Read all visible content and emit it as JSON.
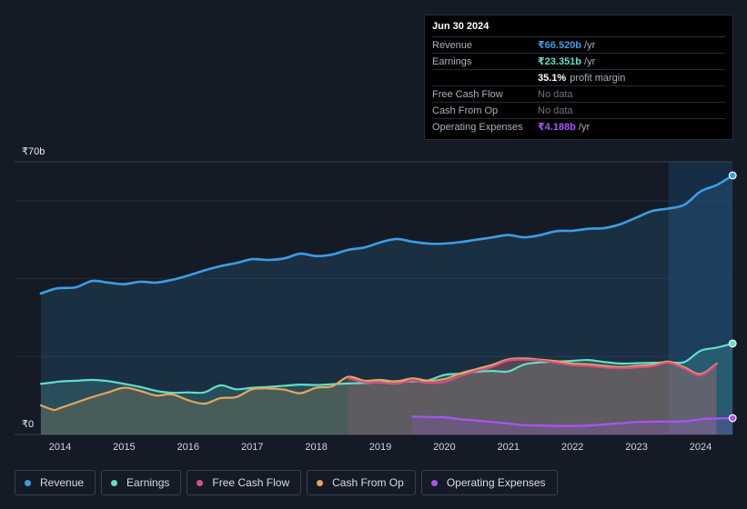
{
  "tooltip": {
    "date": "Jun 30 2024",
    "revenue": {
      "label": "Revenue",
      "value": "₹66.520b",
      "unit": "/yr",
      "color": "#3d9ee3"
    },
    "earnings": {
      "label": "Earnings",
      "value": "₹23.351b",
      "unit": "/yr",
      "color": "#5ee0c8"
    },
    "margin": {
      "value": "35.1%",
      "label": "profit margin"
    },
    "fcf": {
      "label": "Free Cash Flow",
      "value": "No data"
    },
    "cfo": {
      "label": "Cash From Op",
      "value": "No data"
    },
    "opex": {
      "label": "Operating Expenses",
      "value": "₹4.188b",
      "unit": "/yr",
      "color": "#a855f7"
    }
  },
  "legend": [
    {
      "label": "Revenue",
      "color": "#3d9ee3"
    },
    {
      "label": "Earnings",
      "color": "#5ee0c8"
    },
    {
      "label": "Free Cash Flow",
      "color": "#d64f86"
    },
    {
      "label": "Cash From Op",
      "color": "#e6a55c"
    },
    {
      "label": "Operating Expenses",
      "color": "#a855f7"
    }
  ],
  "chart_data": {
    "type": "line",
    "title": "",
    "ylabel": "",
    "y_top_label": "₹70b",
    "y_bottom_label": "₹0",
    "ylim": [
      0,
      70
    ],
    "xlim": [
      2013.7,
      2024.5
    ],
    "x_ticks": [
      2014,
      2015,
      2016,
      2017,
      2018,
      2019,
      2020,
      2021,
      2022,
      2023,
      2024
    ],
    "x_tick_labels": [
      "2014",
      "2015",
      "2016",
      "2017",
      "2018",
      "2019",
      "2020",
      "2021",
      "2022",
      "2023",
      "2024"
    ],
    "highlight_from": 2023.5,
    "series": [
      {
        "name": "Revenue",
        "color": "#3d9ee3",
        "fill": true,
        "x": [
          2013.7,
          2013.9,
          2014.0,
          2014.25,
          2014.5,
          2014.75,
          2015.0,
          2015.25,
          2015.5,
          2015.75,
          2016.0,
          2016.25,
          2016.5,
          2016.75,
          2017.0,
          2017.25,
          2017.5,
          2017.75,
          2018.0,
          2018.25,
          2018.5,
          2018.75,
          2019.0,
          2019.25,
          2019.5,
          2019.75,
          2020.0,
          2020.25,
          2020.5,
          2020.75,
          2021.0,
          2021.25,
          2021.5,
          2021.75,
          2022.0,
          2022.25,
          2022.5,
          2022.75,
          2023.0,
          2023.25,
          2023.5,
          2023.75,
          2024.0,
          2024.25,
          2024.5
        ],
        "values": [
          36.2,
          37.3,
          37.6,
          37.8,
          39.4,
          39.0,
          38.6,
          39.2,
          39.0,
          39.7,
          40.8,
          42.1,
          43.2,
          44.0,
          45.0,
          44.8,
          45.2,
          46.4,
          45.8,
          46.2,
          47.4,
          48.0,
          49.3,
          50.2,
          49.5,
          49.0,
          49.0,
          49.4,
          50.0,
          50.6,
          51.2,
          50.6,
          51.2,
          52.2,
          52.3,
          52.8,
          53.0,
          54.0,
          55.7,
          57.4,
          58.0,
          59.0,
          62.4,
          64.0,
          66.5
        ]
      },
      {
        "name": "Earnings",
        "color": "#5ee0c8",
        "fill": true,
        "x": [
          2013.7,
          2013.9,
          2014.0,
          2014.25,
          2014.5,
          2014.75,
          2015.0,
          2015.25,
          2015.5,
          2015.75,
          2016.0,
          2016.25,
          2016.5,
          2016.75,
          2017.0,
          2017.25,
          2017.5,
          2017.75,
          2018.0,
          2018.25,
          2018.5,
          2018.75,
          2019.0,
          2019.25,
          2019.5,
          2019.75,
          2020.0,
          2020.25,
          2020.5,
          2020.75,
          2021.0,
          2021.25,
          2021.5,
          2021.75,
          2022.0,
          2022.25,
          2022.5,
          2022.75,
          2023.0,
          2023.25,
          2023.5,
          2023.75,
          2024.0,
          2024.25,
          2024.5
        ],
        "values": [
          13.0,
          13.4,
          13.6,
          13.8,
          14.0,
          13.7,
          13.0,
          12.2,
          11.2,
          10.7,
          10.8,
          10.8,
          12.6,
          11.6,
          12.0,
          12.2,
          12.5,
          12.8,
          12.7,
          12.9,
          13.1,
          13.2,
          13.4,
          13.7,
          13.6,
          13.9,
          15.3,
          15.6,
          16.1,
          16.3,
          16.2,
          18.0,
          18.5,
          18.7,
          18.9,
          19.1,
          18.6,
          18.2,
          18.3,
          18.4,
          18.5,
          18.6,
          21.5,
          22.3,
          23.35
        ]
      },
      {
        "name": "Cash From Op",
        "color": "#e6a55c",
        "fill": true,
        "x": [
          2013.7,
          2013.9,
          2014.0,
          2014.25,
          2014.5,
          2014.75,
          2015.0,
          2015.25,
          2015.5,
          2015.75,
          2016.0,
          2016.25,
          2016.5,
          2016.75,
          2017.0,
          2017.25,
          2017.5,
          2017.75,
          2018.0,
          2018.25,
          2018.5,
          2018.75,
          2019.0,
          2019.25,
          2019.5,
          2019.75,
          2020.0,
          2020.25,
          2020.5,
          2020.75,
          2021.0,
          2021.25,
          2021.5,
          2021.75,
          2022.0,
          2022.25,
          2022.5,
          2022.75,
          2023.0,
          2023.25,
          2023.5,
          2023.75,
          2024.0,
          2024.25
        ],
        "values": [
          7.5,
          6.3,
          6.8,
          8.2,
          9.6,
          10.8,
          12.0,
          11.2,
          10.0,
          10.3,
          8.8,
          7.9,
          9.3,
          9.6,
          11.6,
          11.8,
          11.5,
          10.6,
          12.0,
          12.4,
          14.8,
          13.8,
          14.0,
          13.6,
          14.4,
          13.8,
          14.2,
          15.7,
          16.8,
          17.9,
          19.3,
          19.5,
          19.2,
          18.8,
          18.2,
          18.0,
          17.6,
          17.3,
          17.6,
          17.9,
          18.7,
          17.2,
          15.5,
          18.2
        ]
      },
      {
        "name": "Free Cash Flow",
        "color": "#d64f86",
        "fill": true,
        "x": [
          2018.5,
          2018.75,
          2019.0,
          2019.25,
          2019.5,
          2019.75,
          2020.0,
          2020.25,
          2020.5,
          2020.75,
          2021.0,
          2021.25,
          2021.5,
          2021.75,
          2022.0,
          2022.25,
          2022.5,
          2022.75,
          2023.0,
          2023.25,
          2023.5,
          2023.75,
          2024.0,
          2024.25
        ],
        "values": [
          14.5,
          13.4,
          13.3,
          13.0,
          13.8,
          13.2,
          13.5,
          15.0,
          16.3,
          17.4,
          19.0,
          19.2,
          19.0,
          18.4,
          17.8,
          17.6,
          17.2,
          17.0,
          17.2,
          17.5,
          18.4,
          16.9,
          15.2,
          18.0
        ]
      },
      {
        "name": "Operating Expenses",
        "color": "#a855f7",
        "fill": true,
        "x": [
          2019.5,
          2019.75,
          2020.0,
          2020.25,
          2020.5,
          2020.75,
          2021.0,
          2021.25,
          2021.5,
          2021.75,
          2022.0,
          2022.25,
          2022.5,
          2022.75,
          2023.0,
          2023.25,
          2023.5,
          2023.75,
          2024.0,
          2024.25,
          2024.5
        ],
        "values": [
          4.6,
          4.5,
          4.4,
          3.9,
          3.6,
          3.2,
          2.8,
          2.4,
          2.3,
          2.2,
          2.2,
          2.3,
          2.6,
          2.9,
          3.2,
          3.3,
          3.3,
          3.4,
          3.9,
          4.1,
          4.19
        ]
      }
    ]
  }
}
